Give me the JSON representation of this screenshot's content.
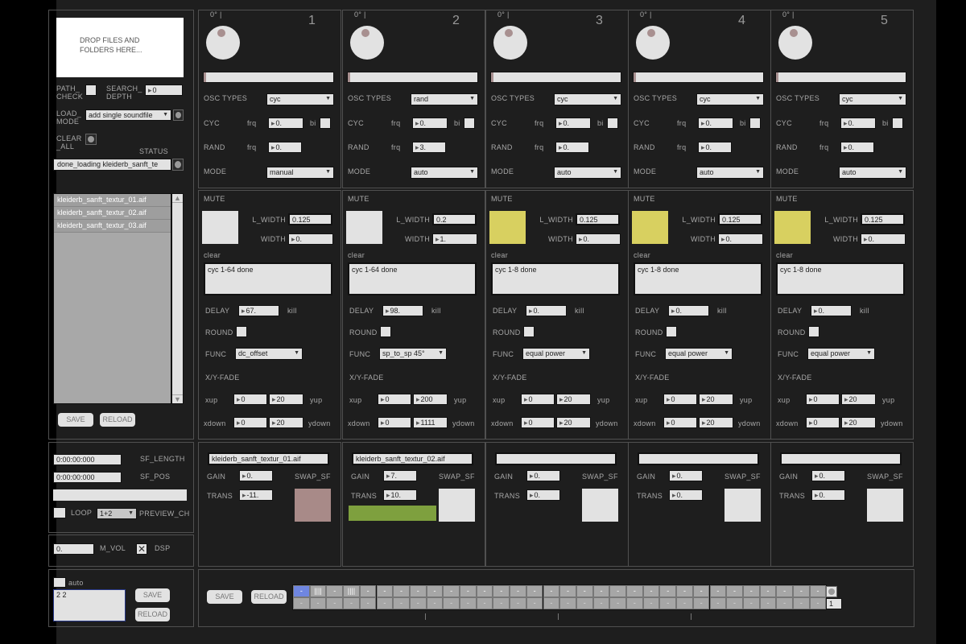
{
  "left": {
    "drop_text": "DROP FILES AND FOLDERS HERE...",
    "path_check": "PATH_ CHECK",
    "search_depth": "SEARCH_ DEPTH",
    "search_depth_value": "0",
    "load_mode": "LOAD_ MODE",
    "load_mode_value": "add single soundfile",
    "clear_all": "CLEAR _ALL",
    "status_label": "STATUS",
    "status_value": "done_loading kleiderb_sanft_te",
    "files": [
      "kleiderb_sanft_textur_01.aif",
      "kleiderb_sanft_textur_02.aif",
      "kleiderb_sanft_textur_03.aif"
    ],
    "save": "SAVE",
    "reload": "RELOAD",
    "sf_length_value": "0:00:00:000",
    "sf_length": "SF_LENGTH",
    "sf_pos_value": "0:00:00:000",
    "sf_pos": "SF_POS",
    "loop": "LOOP",
    "preview_ch_value": "1+2",
    "preview_ch": "PREVIEW_CH",
    "m_vol_value": "0.",
    "m_vol": "M_VOL",
    "dsp": "DSP",
    "dsp_checked": true,
    "auto": "auto",
    "preset_text": "2 2",
    "save2": "SAVE",
    "reload2": "RELOAD"
  },
  "labels": {
    "angle": "0° |",
    "osc_types": "OSC TYPES",
    "cyc": "CYC",
    "frq": "frq",
    "bi": "bi",
    "rand": "RAND",
    "mode": "MODE",
    "mute": "MUTE",
    "l_width": "L_WIDTH",
    "width": "WIDTH",
    "clear": "clear",
    "delay": "DELAY",
    "kill": "kill",
    "round": "ROUND",
    "func": "FUNC",
    "xyfade": "X/Y-FADE",
    "xup": "xup",
    "yup": "yup",
    "xdown": "xdown",
    "ydown": "ydown",
    "gain": "GAIN",
    "swap_sf": "SWAP_SF",
    "trans": "TRANS"
  },
  "channels": [
    {
      "number": "1",
      "osc": "cyc",
      "cyc_frq": "0.",
      "rand_frq": "0.",
      "mode": "manual",
      "mute_color": "#e2e2e2",
      "l_width": "0.125",
      "width": "0.",
      "status": "cyc 1-64 done",
      "delay": "67.",
      "func": "dc_offset",
      "xup": "0",
      "yup": "20",
      "xdown": "0",
      "ydown": "20",
      "file": "kleiderb_sanft_textur_01.aif",
      "gain": "0.",
      "trans": "-11.",
      "swap_color": "#a88a88",
      "progress": 0
    },
    {
      "number": "2",
      "osc": "rand",
      "cyc_frq": "0.",
      "rand_frq": "3.",
      "mode": "auto",
      "mute_color": "#e2e2e2",
      "l_width": "0.2",
      "width": "1.",
      "status": "cyc 1-64 done",
      "delay": "98.",
      "func": "sp_to_sp 45°",
      "xup": "0",
      "yup": "200",
      "xdown": "0",
      "ydown": "1111",
      "file": "kleiderb_sanft_textur_02.aif",
      "gain": "7.",
      "trans": "10.",
      "swap_color": "#e2e2e2",
      "progress": 1
    },
    {
      "number": "3",
      "osc": "cyc",
      "cyc_frq": "0.",
      "rand_frq": "0.",
      "mode": "auto",
      "mute_color": "#d8d060",
      "l_width": "0.125",
      "width": "0.",
      "status": "cyc 1-8 done",
      "delay": "0.",
      "func": "equal power",
      "xup": "0",
      "yup": "20",
      "xdown": "0",
      "ydown": "20",
      "file": "",
      "gain": "0.",
      "trans": "0.",
      "swap_color": "#e2e2e2",
      "progress": 0
    },
    {
      "number": "4",
      "osc": "cyc",
      "cyc_frq": "0.",
      "rand_frq": "0.",
      "mode": "auto",
      "mute_color": "#d8d060",
      "l_width": "0.125",
      "width": "0.",
      "status": "cyc 1-8 done",
      "delay": "0.",
      "func": "equal power",
      "xup": "0",
      "yup": "20",
      "xdown": "0",
      "ydown": "20",
      "file": "",
      "gain": "0.",
      "trans": "0.",
      "swap_color": "#e2e2e2",
      "progress": 0
    },
    {
      "number": "5",
      "osc": "cyc",
      "cyc_frq": "0.",
      "rand_frq": "0.",
      "mode": "auto",
      "mute_color": "#d8d060",
      "l_width": "0.125",
      "width": "0.",
      "status": "cyc 1-8 done",
      "delay": "0.",
      "func": "equal power",
      "xup": "0",
      "yup": "20",
      "xdown": "0",
      "ydown": "20",
      "file": "",
      "gain": "0.",
      "trans": "0.",
      "swap_color": "#e2e2e2",
      "progress": 0
    }
  ],
  "bottom": {
    "save": "SAVE",
    "reload": "RELOAD",
    "grid_row1": [
      "-",
      "||||",
      "-",
      "||||",
      "-",
      "-",
      "-",
      "-",
      "-",
      "-",
      "-",
      "-",
      "-",
      "-",
      "-",
      "-",
      "-",
      "-",
      "-",
      "-",
      "-",
      "-",
      "-",
      "-",
      "-",
      "-",
      "-",
      "-",
      "-",
      "-",
      "-",
      "-"
    ],
    "grid_row2_symbol": "-",
    "selected_cell": 0,
    "selected_color": "#6f86e0",
    "preset_number": "1"
  },
  "colors": {
    "green": "#7ea03e"
  }
}
